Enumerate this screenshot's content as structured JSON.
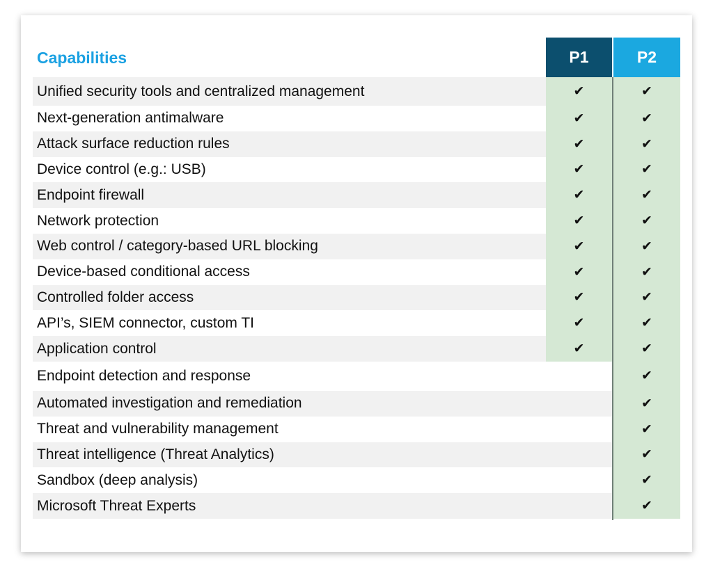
{
  "colors": {
    "title": "#1ba1e2",
    "p1_header": "#0c4f6e",
    "p2_header": "#1ba8e0",
    "row_alt": "#f1f1f1",
    "row_plain": "#ffffff",
    "check_fill": "#d5e8d4"
  },
  "table": {
    "title": "Capabilities",
    "columns": [
      "P1",
      "P2"
    ],
    "check_symbol": "✔",
    "rows": [
      {
        "label": "Unified security tools and centralized management",
        "p1": true,
        "p2": true
      },
      {
        "label": "Next-generation antimalware",
        "p1": true,
        "p2": true
      },
      {
        "label": "Attack surface reduction rules",
        "p1": true,
        "p2": true
      },
      {
        "label": "Device control (e.g.: USB)",
        "p1": true,
        "p2": true
      },
      {
        "label": "Endpoint firewall",
        "p1": true,
        "p2": true
      },
      {
        "label": "Network protection",
        "p1": true,
        "p2": true
      },
      {
        "label": "Web control / category-based URL blocking",
        "p1": true,
        "p2": true
      },
      {
        "label": "Device-based conditional access",
        "p1": true,
        "p2": true
      },
      {
        "label": "Controlled folder access",
        "p1": true,
        "p2": true
      },
      {
        "label": "API’s, SIEM connector, custom TI",
        "p1": true,
        "p2": true
      },
      {
        "label": "Application control",
        "p1": true,
        "p2": true
      },
      {
        "label": "Endpoint detection and response",
        "p1": false,
        "p2": true
      },
      {
        "label": "Automated investigation and remediation",
        "p1": false,
        "p2": true
      },
      {
        "label": "Threat and vulnerability management",
        "p1": false,
        "p2": true
      },
      {
        "label": "Threat intelligence (Threat Analytics)",
        "p1": false,
        "p2": true
      },
      {
        "label": "Sandbox (deep analysis)",
        "p1": false,
        "p2": true
      },
      {
        "label": "Microsoft Threat Experts",
        "p1": false,
        "p2": true
      }
    ]
  }
}
